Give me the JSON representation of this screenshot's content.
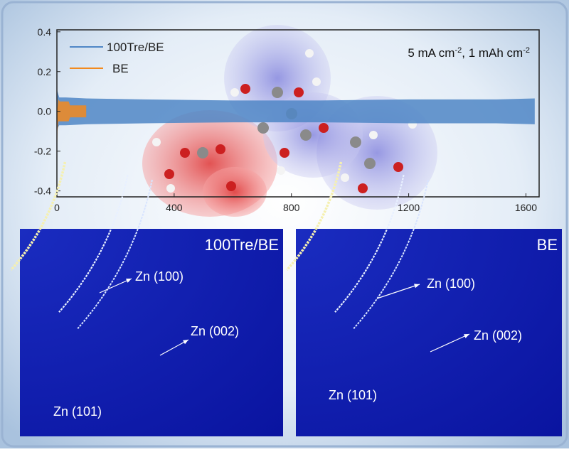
{
  "chart_data": {
    "type": "range-area",
    "annotation": [
      "5 mA cm",
      "-2",
      ",  1 mAh cm",
      "-2"
    ],
    "xlim": [
      0,
      1645
    ],
    "xticks": [
      0,
      400,
      800,
      1200,
      1600
    ],
    "ylim": [
      -0.43,
      0.41
    ],
    "yticks": [
      0.4,
      0.2,
      {
        "value": 0,
        "label": "0.0"
      },
      -0.2,
      -0.4
    ],
    "legend": "top-left",
    "series": [
      {
        "name": "100Tre/BE",
        "color": "#4f86c6",
        "x": [
          0,
          4,
          8,
          30,
          100,
          300,
          600,
          900,
          1200,
          1500,
          1630
        ],
        "high": [
          0.11,
          0.09,
          0.07,
          0.07,
          0.065,
          0.06,
          0.055,
          0.055,
          0.06,
          0.06,
          0.065
        ],
        "low": [
          -0.1,
          -0.08,
          -0.07,
          -0.07,
          -0.065,
          -0.06,
          -0.055,
          -0.055,
          -0.06,
          -0.06,
          -0.065
        ]
      },
      {
        "name": "BE",
        "color": "#f28a1e",
        "x": [
          0,
          2,
          5,
          10,
          40,
          45,
          90,
          100
        ],
        "high": [
          0.02,
          0.02,
          0.06,
          0.05,
          0.05,
          0.03,
          0.03,
          0.03
        ],
        "low": [
          -0.25,
          -0.1,
          -0.05,
          -0.05,
          -0.05,
          -0.03,
          -0.03,
          -0.03
        ]
      }
    ]
  },
  "panels": [
    {
      "label": "100Tre/BE",
      "peaks": [
        "Zn (100)",
        "Zn (002)",
        "Zn (101)"
      ]
    },
    {
      "label": "BE",
      "peaks": [
        "Zn (100)",
        "Zn (002)",
        "Zn (101)"
      ]
    }
  ]
}
